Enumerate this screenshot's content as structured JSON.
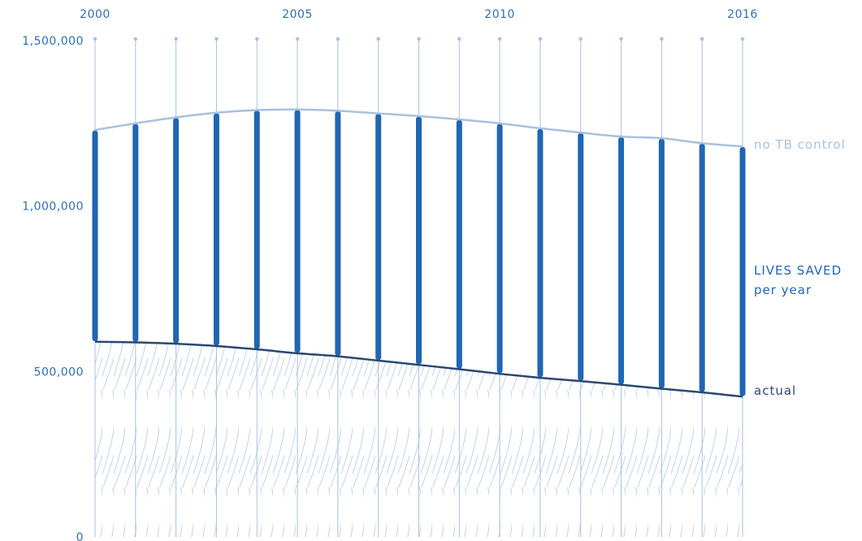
{
  "chart_data": {
    "type": "line",
    "x": [
      2000,
      2001,
      2002,
      2003,
      2004,
      2005,
      2006,
      2007,
      2008,
      2009,
      2010,
      2011,
      2012,
      2013,
      2014,
      2015,
      2016
    ],
    "x_tick_labels": [
      "2000",
      "2005",
      "2010",
      "2016"
    ],
    "x_tick_values": [
      2000,
      2005,
      2010,
      2016
    ],
    "y_tick_labels": [
      "0",
      "500,000",
      "1,000,000",
      "1,500,000"
    ],
    "y_tick_values": [
      0,
      500000,
      1000000,
      1500000
    ],
    "ylim": [
      0,
      1500000
    ],
    "xlabel": "",
    "ylabel": "",
    "series": [
      {
        "name": "no TB control",
        "values": [
          1230000,
          1250000,
          1268000,
          1282000,
          1290000,
          1292000,
          1288000,
          1280000,
          1272000,
          1262000,
          1250000,
          1235000,
          1222000,
          1210000,
          1205000,
          1190000,
          1180000
        ]
      },
      {
        "name": "actual",
        "values": [
          590000,
          588000,
          584000,
          577000,
          567000,
          555000,
          546000,
          533000,
          520000,
          507000,
          493000,
          481000,
          471000,
          460000,
          448000,
          437000,
          424000
        ]
      }
    ],
    "annotations": {
      "lives_saved_line1": "LIVES SAVED",
      "lives_saved_line2": "per year"
    },
    "colors": {
      "no_tb_control": "#a9c0e0",
      "actual": "#2a4870",
      "lives_saved_bar": "#1f66b4",
      "gridline": "#a9c0e0",
      "tick_text": "#2e6fb5",
      "hatch": "#c2d2e8"
    }
  }
}
